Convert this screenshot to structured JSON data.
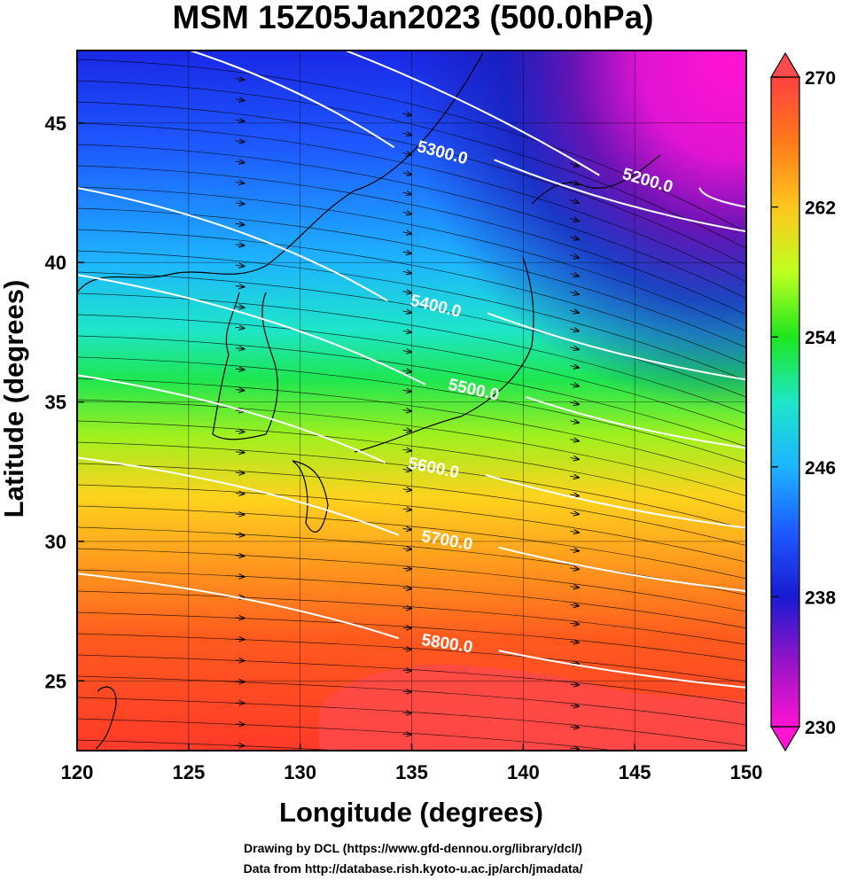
{
  "figure": {
    "title": "MSM 15Z05Jan2023 (500.0hPa)",
    "xlabel": "Longitude (degrees)",
    "ylabel": "Latitude  (degrees)",
    "credit_line1": "Drawing by DCL (https://www.gfd-dennou.org/library/dcl/)",
    "credit_line2": "Data from http://database.rish.kyoto-u.ac.jp/arch/jmadata/"
  },
  "map": {
    "lon_range": [
      120,
      150
    ],
    "lat_range": [
      22.5,
      47.6
    ],
    "x_ticks": [
      "120",
      "125",
      "130",
      "135",
      "140",
      "145",
      "150"
    ],
    "y_ticks": [
      "25",
      "30",
      "35",
      "40",
      "45"
    ],
    "grid": true,
    "shading": "temperature (K), blue-north to red-south gradient",
    "vectors": "streamlines with arrowheads, westerly flow turning southeastward",
    "contours": [
      {
        "label": "5200.0",
        "label_lon": 145.6,
        "label_lat": 43.0
      },
      {
        "label": "5300.0",
        "label_lon": 136.4,
        "label_lat": 44.0
      },
      {
        "label": "5400.0",
        "label_lon": 136.1,
        "label_lat": 38.5
      },
      {
        "label": "5500.0",
        "label_lon": 137.8,
        "label_lat": 35.5
      },
      {
        "label": "5600.0",
        "label_lon": 136.0,
        "label_lat": 32.7
      },
      {
        "label": "5700.0",
        "label_lon": 136.6,
        "label_lat": 30.1
      },
      {
        "label": "5800.0",
        "label_lon": 136.6,
        "label_lat": 26.4
      }
    ]
  },
  "colorbar": {
    "range": [
      230,
      270
    ],
    "tick_labels": [
      "270",
      "262",
      "254",
      "246",
      "238",
      "230"
    ],
    "colors": [
      "#ff4040",
      "#ff7a1a",
      "#ffc61e",
      "#bfff1e",
      "#1ee61e",
      "#1ee6a8",
      "#1ed2ff",
      "#1e82ff",
      "#1a1ad2",
      "#5a14b4",
      "#ff14d2"
    ]
  }
}
